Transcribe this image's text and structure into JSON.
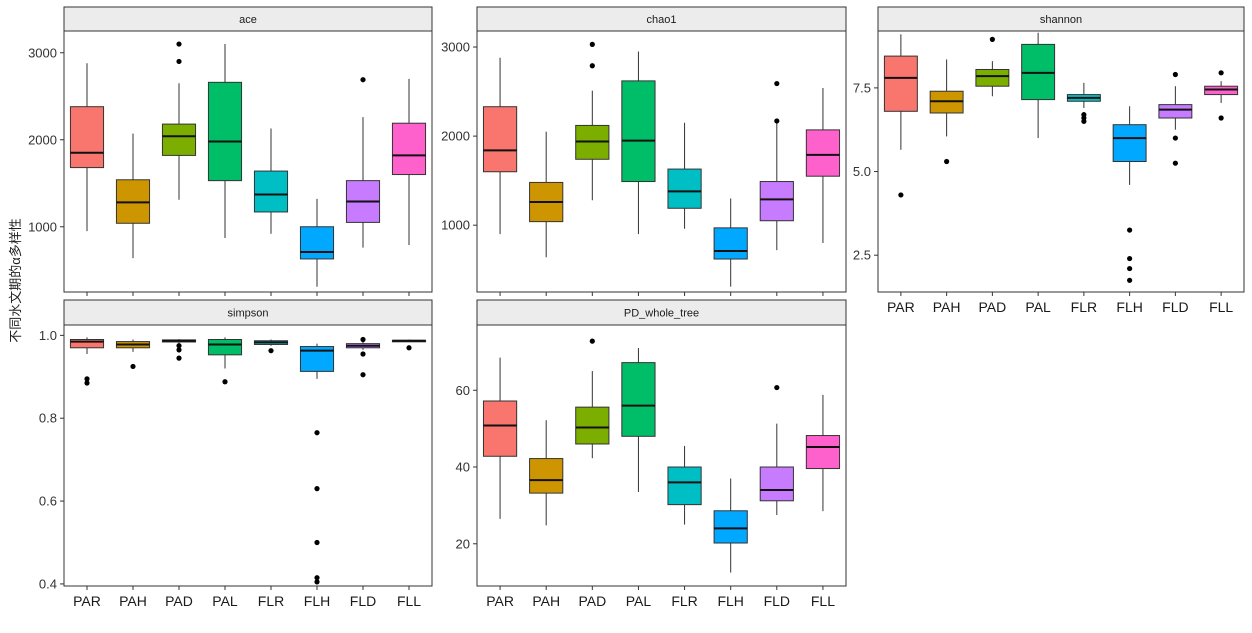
{
  "ylabel": "不同水文期的α多样性",
  "categories": [
    "PAR",
    "PAH",
    "PAD",
    "PAL",
    "FLR",
    "FLH",
    "FLD",
    "FLL"
  ],
  "colors": [
    "#F8766D",
    "#CD9600",
    "#7CAE00",
    "#00BE67",
    "#00BFC4",
    "#00A9FF",
    "#C77CFF",
    "#FF61CC"
  ],
  "chart_data": [
    {
      "type": "box",
      "title": "ace",
      "ylim": [
        250,
        3250
      ],
      "yticks": [
        1000,
        2000,
        3000
      ],
      "boxes": [
        {
          "min": 950,
          "q1": 1680,
          "median": 1850,
          "q3": 2380,
          "max": 2880,
          "outliers": []
        },
        {
          "min": 640,
          "q1": 1040,
          "median": 1280,
          "q3": 1540,
          "max": 2070,
          "outliers": []
        },
        {
          "min": 1310,
          "q1": 1820,
          "median": 2040,
          "q3": 2180,
          "max": 2650,
          "outliers": [
            2900,
            3100
          ]
        },
        {
          "min": 870,
          "q1": 1530,
          "median": 1980,
          "q3": 2660,
          "max": 3100,
          "outliers": []
        },
        {
          "min": 920,
          "q1": 1170,
          "median": 1370,
          "q3": 1640,
          "max": 2130,
          "outliers": []
        },
        {
          "min": 310,
          "q1": 630,
          "median": 710,
          "q3": 1000,
          "max": 1320,
          "outliers": []
        },
        {
          "min": 760,
          "q1": 1050,
          "median": 1290,
          "q3": 1530,
          "max": 2260,
          "outliers": [
            2690
          ]
        },
        {
          "min": 790,
          "q1": 1600,
          "median": 1820,
          "q3": 2190,
          "max": 2700,
          "outliers": []
        }
      ]
    },
    {
      "type": "box",
      "title": "chao1",
      "ylim": [
        250,
        3180
      ],
      "yticks": [
        1000,
        2000,
        3000
      ],
      "boxes": [
        {
          "min": 900,
          "q1": 1600,
          "median": 1840,
          "q3": 2330,
          "max": 2880,
          "outliers": []
        },
        {
          "min": 640,
          "q1": 1040,
          "median": 1260,
          "q3": 1480,
          "max": 2050,
          "outliers": []
        },
        {
          "min": 1280,
          "q1": 1740,
          "median": 1940,
          "q3": 2120,
          "max": 2510,
          "outliers": [
            2790,
            3030
          ]
        },
        {
          "min": 900,
          "q1": 1490,
          "median": 1950,
          "q3": 2620,
          "max": 2950,
          "outliers": []
        },
        {
          "min": 960,
          "q1": 1190,
          "median": 1380,
          "q3": 1630,
          "max": 2150,
          "outliers": []
        },
        {
          "min": 310,
          "q1": 620,
          "median": 710,
          "q3": 970,
          "max": 1300,
          "outliers": []
        },
        {
          "min": 720,
          "q1": 1050,
          "median": 1290,
          "q3": 1490,
          "max": 2160,
          "outliers": [
            2170,
            2590
          ]
        },
        {
          "min": 800,
          "q1": 1550,
          "median": 1790,
          "q3": 2070,
          "max": 2540,
          "outliers": []
        }
      ]
    },
    {
      "type": "box",
      "title": "shannon",
      "ylim": [
        1.4,
        9.2
      ],
      "yticks": [
        2.5,
        5.0,
        7.5
      ],
      "ytick_labels": [
        "2.5",
        "5.0",
        "7.5"
      ],
      "boxes": [
        {
          "min": 5.65,
          "q1": 6.8,
          "median": 7.8,
          "q3": 8.45,
          "max": 9.1,
          "outliers": [
            4.3
          ]
        },
        {
          "min": 6.05,
          "q1": 6.75,
          "median": 7.1,
          "q3": 7.4,
          "max": 8.35,
          "outliers": [
            5.3
          ]
        },
        {
          "min": 7.25,
          "q1": 7.55,
          "median": 7.85,
          "q3": 8.05,
          "max": 8.3,
          "outliers": [
            8.95
          ]
        },
        {
          "min": 6.0,
          "q1": 7.15,
          "median": 7.95,
          "q3": 8.8,
          "max": 9.15,
          "outliers": []
        },
        {
          "min": 6.9,
          "q1": 7.1,
          "median": 7.2,
          "q3": 7.3,
          "max": 7.65,
          "outliers": [
            6.5,
            6.6,
            6.7
          ]
        },
        {
          "min": 4.6,
          "q1": 5.3,
          "median": 6.0,
          "q3": 6.4,
          "max": 6.95,
          "outliers": [
            3.25,
            2.4,
            2.1,
            1.75
          ]
        },
        {
          "min": 6.25,
          "q1": 6.6,
          "median": 6.85,
          "q3": 7.0,
          "max": 7.55,
          "outliers": [
            7.9,
            6.0,
            5.25
          ]
        },
        {
          "min": 7.05,
          "q1": 7.3,
          "median": 7.45,
          "q3": 7.55,
          "max": 7.7,
          "outliers": [
            7.95,
            6.6
          ]
        }
      ]
    },
    {
      "type": "box",
      "title": "simpson",
      "ylim": [
        0.395,
        1.025
      ],
      "yticks": [
        0.4,
        0.6,
        0.8,
        1.0
      ],
      "ytick_labels": [
        "0.4",
        "0.6",
        "0.8",
        "1.0"
      ],
      "boxes": [
        {
          "min": 0.955,
          "q1": 0.97,
          "median": 0.985,
          "q3": 0.99,
          "max": 0.995,
          "outliers": [
            0.895,
            0.885
          ]
        },
        {
          "min": 0.96,
          "q1": 0.97,
          "median": 0.978,
          "q3": 0.985,
          "max": 0.99,
          "outliers": [
            0.925
          ]
        },
        {
          "min": 0.98,
          "q1": 0.984,
          "median": 0.987,
          "q3": 0.989,
          "max": 0.991,
          "outliers": [
            0.975,
            0.965,
            0.945
          ]
        },
        {
          "min": 0.92,
          "q1": 0.953,
          "median": 0.978,
          "q3": 0.99,
          "max": 0.995,
          "outliers": [
            0.888
          ]
        },
        {
          "min": 0.975,
          "q1": 0.978,
          "median": 0.983,
          "q3": 0.987,
          "max": 0.99,
          "outliers": [
            0.963
          ]
        },
        {
          "min": 0.895,
          "q1": 0.913,
          "median": 0.963,
          "q3": 0.973,
          "max": 0.98,
          "outliers": [
            0.765,
            0.63,
            0.5,
            0.415,
            0.405
          ]
        },
        {
          "min": 0.965,
          "q1": 0.97,
          "median": 0.975,
          "q3": 0.98,
          "max": 0.985,
          "outliers": [
            0.99,
            0.955,
            0.905
          ]
        },
        {
          "min": 0.985,
          "q1": 0.986,
          "median": 0.987,
          "q3": 0.988,
          "max": 0.99,
          "outliers": [
            0.97
          ]
        }
      ]
    },
    {
      "type": "box",
      "title": "PD_whole_tree",
      "ylim": [
        9,
        77
      ],
      "yticks": [
        20,
        40,
        60
      ],
      "boxes": [
        {
          "min": 26.5,
          "q1": 42.8,
          "median": 50.8,
          "q3": 57.2,
          "max": 68.5,
          "outliers": []
        },
        {
          "min": 24.8,
          "q1": 33.2,
          "median": 36.6,
          "q3": 42.2,
          "max": 52.2,
          "outliers": []
        },
        {
          "min": 42.3,
          "q1": 46.0,
          "median": 50.3,
          "q3": 55.6,
          "max": 65.0,
          "outliers": [
            72.8
          ]
        },
        {
          "min": 33.5,
          "q1": 48.0,
          "median": 56.0,
          "q3": 67.2,
          "max": 71.0,
          "outliers": []
        },
        {
          "min": 25.0,
          "q1": 30.2,
          "median": 36.0,
          "q3": 40.0,
          "max": 45.5,
          "outliers": []
        },
        {
          "min": 12.5,
          "q1": 20.2,
          "median": 24.0,
          "q3": 28.6,
          "max": 37.0,
          "outliers": []
        },
        {
          "min": 27.5,
          "q1": 31.2,
          "median": 34.0,
          "q3": 40.0,
          "max": 51.3,
          "outliers": [
            60.7
          ]
        },
        {
          "min": 28.5,
          "q1": 39.6,
          "median": 45.2,
          "q3": 48.2,
          "max": 58.8,
          "outliers": []
        }
      ]
    }
  ]
}
